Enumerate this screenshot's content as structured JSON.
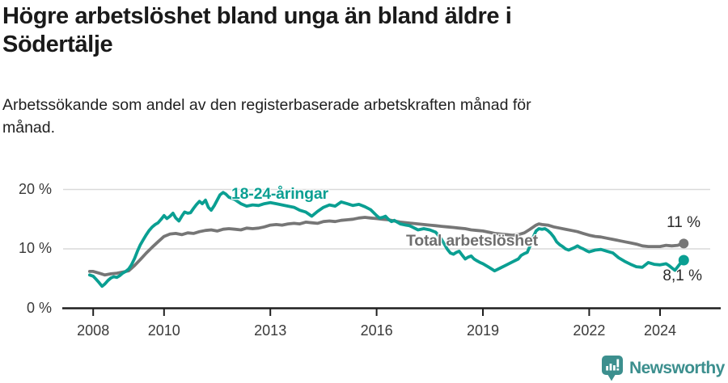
{
  "chart_data": {
    "type": "line",
    "title": "Högre arbetslöshet bland unga än bland äldre i\nSödertälje",
    "subtitle": "Arbetssökande som andel av den registerbaserade arbetskraften månad för\nmånad.",
    "xlabel": "",
    "ylabel": "",
    "x_range": [
      2007.9,
      2024.67
    ],
    "ylim": [
      0,
      21.5
    ],
    "grid": "horizontal",
    "grid_color": "#d9d9d9",
    "axis_color": "#1f1f1f",
    "x_ticks": [
      2008,
      2010,
      2013,
      2016,
      2019,
      2022,
      2024
    ],
    "x_tick_labels": [
      "2008",
      "2010",
      "2013",
      "2016",
      "2019",
      "2022",
      "2024"
    ],
    "y_ticks": [
      0,
      10,
      20
    ],
    "y_tick_labels": [
      "0 %",
      "10 %",
      "20 %"
    ],
    "legend_position": "inline-labels",
    "series": [
      {
        "id": "total",
        "name": "Total arbetslöshet",
        "color": "#767676",
        "end_label": "11 %",
        "end_value": 10.9,
        "dot_r": 6,
        "points": [
          [
            2007.9,
            6.2
          ],
          [
            2008.0,
            6.2
          ],
          [
            2008.17,
            5.9
          ],
          [
            2008.33,
            5.6
          ],
          [
            2008.5,
            5.8
          ],
          [
            2008.67,
            5.9
          ],
          [
            2008.83,
            6.1
          ],
          [
            2009.0,
            6.3
          ],
          [
            2009.17,
            7.2
          ],
          [
            2009.33,
            8.2
          ],
          [
            2009.5,
            9.3
          ],
          [
            2009.67,
            10.3
          ],
          [
            2009.83,
            11.2
          ],
          [
            2010.0,
            12.1
          ],
          [
            2010.17,
            12.5
          ],
          [
            2010.33,
            12.6
          ],
          [
            2010.5,
            12.4
          ],
          [
            2010.67,
            12.7
          ],
          [
            2010.83,
            12.6
          ],
          [
            2011.0,
            12.9
          ],
          [
            2011.17,
            13.1
          ],
          [
            2011.33,
            13.2
          ],
          [
            2011.5,
            13.0
          ],
          [
            2011.67,
            13.3
          ],
          [
            2011.83,
            13.4
          ],
          [
            2012.0,
            13.3
          ],
          [
            2012.17,
            13.2
          ],
          [
            2012.33,
            13.5
          ],
          [
            2012.5,
            13.4
          ],
          [
            2012.67,
            13.5
          ],
          [
            2012.83,
            13.7
          ],
          [
            2013.0,
            14.0
          ],
          [
            2013.17,
            14.1
          ],
          [
            2013.33,
            14.0
          ],
          [
            2013.5,
            14.2
          ],
          [
            2013.67,
            14.3
          ],
          [
            2013.83,
            14.2
          ],
          [
            2014.0,
            14.5
          ],
          [
            2014.17,
            14.4
          ],
          [
            2014.33,
            14.3
          ],
          [
            2014.5,
            14.6
          ],
          [
            2014.67,
            14.7
          ],
          [
            2014.83,
            14.6
          ],
          [
            2015.0,
            14.8
          ],
          [
            2015.17,
            14.9
          ],
          [
            2015.33,
            15.0
          ],
          [
            2015.5,
            15.2
          ],
          [
            2015.67,
            15.3
          ],
          [
            2015.83,
            15.2
          ],
          [
            2016.0,
            15.1
          ],
          [
            2016.17,
            15.0
          ],
          [
            2016.33,
            14.9
          ],
          [
            2016.5,
            14.7
          ],
          [
            2016.67,
            14.5
          ],
          [
            2016.83,
            14.4
          ],
          [
            2017.0,
            14.3
          ],
          [
            2017.17,
            14.2
          ],
          [
            2017.33,
            14.1
          ],
          [
            2017.5,
            14.0
          ],
          [
            2017.67,
            13.9
          ],
          [
            2017.83,
            13.8
          ],
          [
            2018.0,
            13.7
          ],
          [
            2018.17,
            13.6
          ],
          [
            2018.33,
            13.5
          ],
          [
            2018.5,
            13.4
          ],
          [
            2018.67,
            13.2
          ],
          [
            2018.83,
            13.1
          ],
          [
            2019.0,
            13.0
          ],
          [
            2019.17,
            12.8
          ],
          [
            2019.33,
            12.6
          ],
          [
            2019.5,
            12.5
          ],
          [
            2019.67,
            12.4
          ],
          [
            2019.83,
            12.3
          ],
          [
            2020.0,
            12.4
          ],
          [
            2020.17,
            12.7
          ],
          [
            2020.33,
            13.3
          ],
          [
            2020.5,
            14.0
          ],
          [
            2020.58,
            14.2
          ],
          [
            2020.67,
            14.1
          ],
          [
            2020.83,
            14.0
          ],
          [
            2021.0,
            13.7
          ],
          [
            2021.17,
            13.5
          ],
          [
            2021.33,
            13.3
          ],
          [
            2021.5,
            13.1
          ],
          [
            2021.67,
            12.9
          ],
          [
            2021.83,
            12.6
          ],
          [
            2022.0,
            12.3
          ],
          [
            2022.17,
            12.1
          ],
          [
            2022.33,
            12.0
          ],
          [
            2022.5,
            11.8
          ],
          [
            2022.67,
            11.6
          ],
          [
            2022.83,
            11.4
          ],
          [
            2023.0,
            11.2
          ],
          [
            2023.17,
            11.0
          ],
          [
            2023.33,
            10.8
          ],
          [
            2023.5,
            10.5
          ],
          [
            2023.67,
            10.4
          ],
          [
            2023.83,
            10.4
          ],
          [
            2024.0,
            10.4
          ],
          [
            2024.17,
            10.6
          ],
          [
            2024.33,
            10.5
          ],
          [
            2024.5,
            10.6
          ],
          [
            2024.58,
            10.8
          ],
          [
            2024.67,
            10.9
          ]
        ]
      },
      {
        "id": "youth",
        "name": "18-24-åringar",
        "color": "#0a9f92",
        "end_label": "8,1 %",
        "end_value": 8.1,
        "dot_r": 6.5,
        "points": [
          [
            2007.9,
            5.6
          ],
          [
            2008.0,
            5.4
          ],
          [
            2008.08,
            4.9
          ],
          [
            2008.17,
            4.3
          ],
          [
            2008.25,
            3.7
          ],
          [
            2008.33,
            4.1
          ],
          [
            2008.42,
            4.7
          ],
          [
            2008.5,
            5.1
          ],
          [
            2008.58,
            5.3
          ],
          [
            2008.67,
            5.2
          ],
          [
            2008.75,
            5.5
          ],
          [
            2008.83,
            5.9
          ],
          [
            2008.92,
            6.2
          ],
          [
            2009.0,
            6.6
          ],
          [
            2009.08,
            7.3
          ],
          [
            2009.17,
            8.4
          ],
          [
            2009.25,
            9.6
          ],
          [
            2009.33,
            10.7
          ],
          [
            2009.42,
            11.6
          ],
          [
            2009.5,
            12.4
          ],
          [
            2009.58,
            13.1
          ],
          [
            2009.67,
            13.7
          ],
          [
            2009.75,
            14.1
          ],
          [
            2009.83,
            14.4
          ],
          [
            2009.92,
            15.0
          ],
          [
            2010.0,
            15.6
          ],
          [
            2010.08,
            15.1
          ],
          [
            2010.17,
            15.5
          ],
          [
            2010.25,
            16.0
          ],
          [
            2010.33,
            15.2
          ],
          [
            2010.42,
            14.7
          ],
          [
            2010.5,
            15.5
          ],
          [
            2010.58,
            16.2
          ],
          [
            2010.67,
            16.0
          ],
          [
            2010.75,
            16.1
          ],
          [
            2010.83,
            16.8
          ],
          [
            2010.92,
            17.5
          ],
          [
            2011.0,
            18.0
          ],
          [
            2011.08,
            17.6
          ],
          [
            2011.17,
            18.2
          ],
          [
            2011.25,
            17.0
          ],
          [
            2011.33,
            16.5
          ],
          [
            2011.42,
            17.3
          ],
          [
            2011.5,
            18.2
          ],
          [
            2011.58,
            19.1
          ],
          [
            2011.67,
            19.5
          ],
          [
            2011.75,
            19.2
          ],
          [
            2011.83,
            18.7
          ],
          [
            2011.92,
            18.5
          ],
          [
            2012.0,
            18.3
          ],
          [
            2012.17,
            17.6
          ],
          [
            2012.33,
            17.2
          ],
          [
            2012.5,
            17.4
          ],
          [
            2012.67,
            17.3
          ],
          [
            2012.83,
            17.6
          ],
          [
            2013.0,
            17.8
          ],
          [
            2013.17,
            17.6
          ],
          [
            2013.33,
            17.4
          ],
          [
            2013.5,
            17.2
          ],
          [
            2013.67,
            17.0
          ],
          [
            2013.83,
            16.5
          ],
          [
            2014.0,
            16.2
          ],
          [
            2014.17,
            15.5
          ],
          [
            2014.33,
            16.3
          ],
          [
            2014.5,
            17.0
          ],
          [
            2014.67,
            17.4
          ],
          [
            2014.83,
            17.2
          ],
          [
            2015.0,
            17.9
          ],
          [
            2015.17,
            17.6
          ],
          [
            2015.33,
            17.3
          ],
          [
            2015.5,
            17.5
          ],
          [
            2015.67,
            17.1
          ],
          [
            2015.83,
            16.6
          ],
          [
            2016.0,
            15.6
          ],
          [
            2016.08,
            15.2
          ],
          [
            2016.17,
            15.3
          ],
          [
            2016.25,
            15.5
          ],
          [
            2016.33,
            15.0
          ],
          [
            2016.42,
            14.6
          ],
          [
            2016.5,
            14.8
          ],
          [
            2016.58,
            14.5
          ],
          [
            2016.67,
            14.2
          ],
          [
            2016.75,
            14.1
          ],
          [
            2016.83,
            14.0
          ],
          [
            2016.92,
            13.9
          ],
          [
            2017.0,
            13.7
          ],
          [
            2017.17,
            13.2
          ],
          [
            2017.33,
            13.4
          ],
          [
            2017.5,
            13.2
          ],
          [
            2017.67,
            12.8
          ],
          [
            2017.83,
            11.6
          ],
          [
            2018.0,
            9.9
          ],
          [
            2018.08,
            9.3
          ],
          [
            2018.17,
            9.1
          ],
          [
            2018.25,
            9.4
          ],
          [
            2018.33,
            9.6
          ],
          [
            2018.42,
            8.9
          ],
          [
            2018.5,
            8.3
          ],
          [
            2018.58,
            8.6
          ],
          [
            2018.67,
            8.8
          ],
          [
            2018.75,
            8.3
          ],
          [
            2018.83,
            8.0
          ],
          [
            2018.92,
            7.7
          ],
          [
            2019.0,
            7.5
          ],
          [
            2019.17,
            6.9
          ],
          [
            2019.33,
            6.3
          ],
          [
            2019.5,
            6.8
          ],
          [
            2019.67,
            7.3
          ],
          [
            2019.83,
            7.8
          ],
          [
            2020.0,
            8.3
          ],
          [
            2020.08,
            8.9
          ],
          [
            2020.17,
            9.2
          ],
          [
            2020.25,
            9.4
          ],
          [
            2020.33,
            10.5
          ],
          [
            2020.42,
            12.0
          ],
          [
            2020.5,
            13.0
          ],
          [
            2020.58,
            13.4
          ],
          [
            2020.67,
            13.3
          ],
          [
            2020.75,
            13.4
          ],
          [
            2020.83,
            13.1
          ],
          [
            2020.92,
            12.6
          ],
          [
            2021.0,
            12.0
          ],
          [
            2021.08,
            11.2
          ],
          [
            2021.17,
            10.7
          ],
          [
            2021.25,
            10.4
          ],
          [
            2021.33,
            10.0
          ],
          [
            2021.42,
            9.8
          ],
          [
            2021.5,
            10.0
          ],
          [
            2021.58,
            10.2
          ],
          [
            2021.67,
            10.5
          ],
          [
            2021.75,
            10.2
          ],
          [
            2021.83,
            10.0
          ],
          [
            2021.92,
            9.7
          ],
          [
            2022.0,
            9.5
          ],
          [
            2022.17,
            9.8
          ],
          [
            2022.33,
            9.9
          ],
          [
            2022.5,
            9.6
          ],
          [
            2022.67,
            9.3
          ],
          [
            2022.83,
            8.5
          ],
          [
            2023.0,
            7.9
          ],
          [
            2023.17,
            7.4
          ],
          [
            2023.33,
            7.0
          ],
          [
            2023.5,
            6.9
          ],
          [
            2023.67,
            7.7
          ],
          [
            2023.83,
            7.4
          ],
          [
            2024.0,
            7.3
          ],
          [
            2024.08,
            7.4
          ],
          [
            2024.17,
            7.5
          ],
          [
            2024.25,
            7.2
          ],
          [
            2024.33,
            6.8
          ],
          [
            2024.42,
            6.4
          ],
          [
            2024.5,
            7.0
          ],
          [
            2024.58,
            7.6
          ],
          [
            2024.67,
            8.1
          ]
        ]
      }
    ]
  },
  "footer": {
    "brand": "Newsworthy",
    "brand_color": "#3c8f8e",
    "logo_icon": "chart-speech-bubble"
  }
}
